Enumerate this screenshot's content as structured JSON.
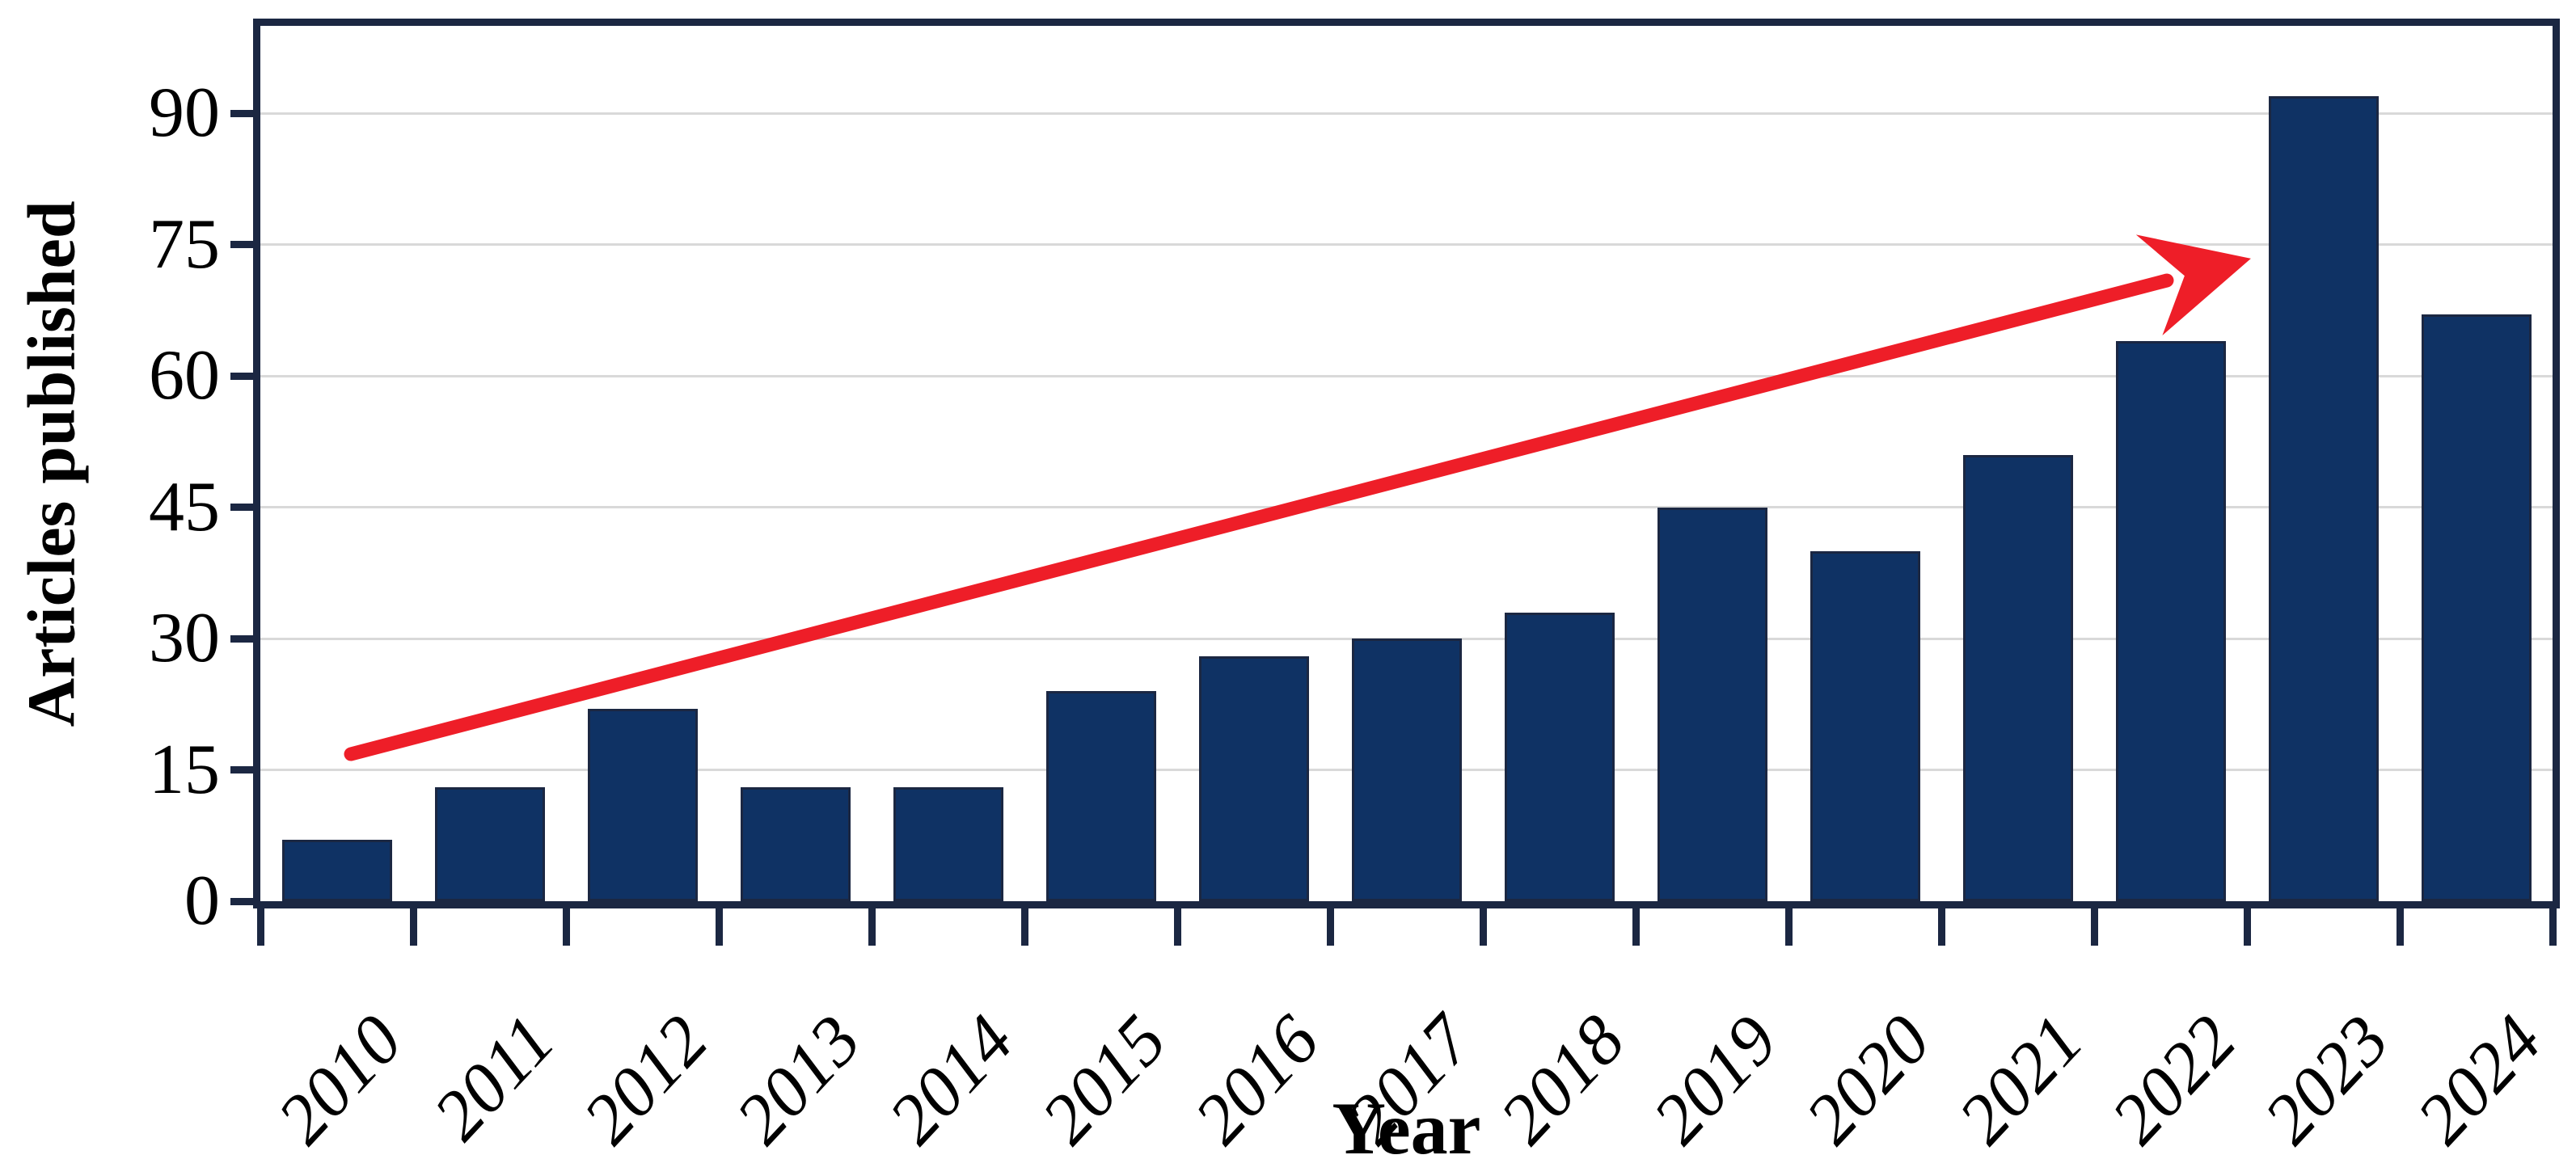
{
  "chart_data": {
    "type": "bar",
    "title": "",
    "categories": [
      "2010",
      "2011",
      "2012",
      "2013",
      "2014",
      "2015",
      "2016",
      "2017",
      "2018",
      "2019",
      "2020",
      "2021",
      "2022",
      "2023",
      "2024"
    ],
    "values": [
      7,
      13,
      22,
      13,
      13,
      24,
      28,
      30,
      33,
      45,
      40,
      51,
      64,
      92,
      67
    ],
    "xlabel": "Year",
    "ylabel": "Articles published",
    "yticks": [
      0,
      15,
      30,
      45,
      60,
      75,
      90
    ],
    "ylim": [
      0,
      100
    ],
    "grid": "horizontal",
    "legend_position": "none",
    "colors": {
      "bar_fill": "#0f3264",
      "bar_edge": "#1b2742",
      "axis_and_border": "#1b2742",
      "gridline": "#d9d9d9",
      "trend_arrow": "#ee1e28",
      "text": "#000000"
    },
    "annotations": [
      {
        "type": "trend-arrow",
        "color": "#ee1e28",
        "start": {
          "year": "2010",
          "value": 17
        },
        "end": {
          "year": "2023",
          "value": 73
        },
        "direction": "up-right"
      }
    ]
  }
}
